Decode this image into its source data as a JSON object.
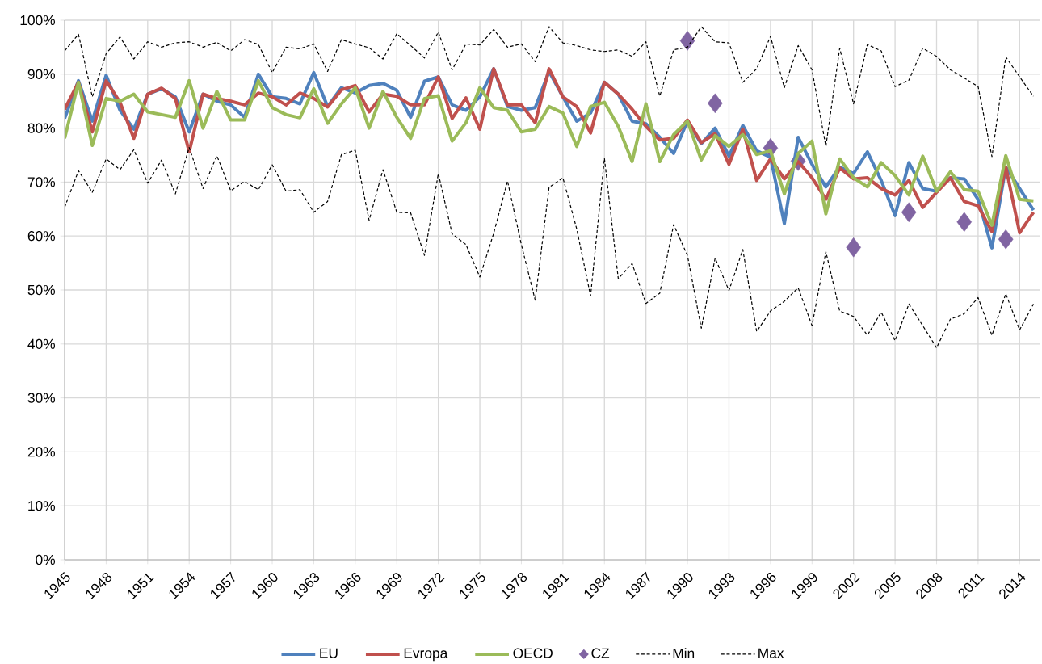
{
  "chart_data": {
    "type": "line",
    "x": [
      1945,
      1946,
      1947,
      1948,
      1949,
      1950,
      1951,
      1952,
      1953,
      1954,
      1955,
      1956,
      1957,
      1958,
      1959,
      1960,
      1961,
      1962,
      1963,
      1964,
      1965,
      1966,
      1967,
      1968,
      1969,
      1970,
      1971,
      1972,
      1973,
      1974,
      1975,
      1976,
      1977,
      1978,
      1979,
      1980,
      1981,
      1982,
      1983,
      1984,
      1985,
      1986,
      1987,
      1988,
      1989,
      1990,
      1991,
      1992,
      1993,
      1994,
      1995,
      1996,
      1997,
      1998,
      1999,
      2000,
      2001,
      2002,
      2003,
      2004,
      2005,
      2006,
      2007,
      2008,
      2009,
      2010,
      2011,
      2012,
      2013,
      2014,
      2015
    ],
    "series": [
      {
        "name": "EU",
        "color": "#4f81bd",
        "line_style": "solid",
        "values": [
          81.8,
          88.8,
          81.3,
          89.8,
          83.3,
          79.8,
          86.3,
          87.3,
          85.8,
          79.3,
          86.3,
          85.0,
          84.3,
          82.0,
          90.0,
          85.8,
          85.5,
          84.5,
          90.3,
          84.0,
          87.5,
          86.5,
          87.9,
          88.3,
          87.0,
          82.0,
          88.7,
          89.5,
          84.3,
          83.3,
          85.8,
          91.0,
          84.0,
          83.3,
          83.8,
          90.5,
          85.8,
          81.3,
          82.8,
          88.5,
          86.3,
          81.3,
          80.8,
          78.3,
          75.3,
          81.3,
          77.1,
          80.0,
          74.8,
          80.5,
          75.8,
          74.6,
          62.3,
          78.3,
          73.3,
          69.1,
          72.8,
          71.6,
          75.6,
          70.3,
          63.8,
          73.6,
          68.8,
          68.3,
          70.8,
          70.6,
          66.8,
          57.8,
          72.8,
          68.8,
          64.8
        ]
      },
      {
        "name": "Evropa",
        "color": "#c0504d",
        "line_style": "solid",
        "values": [
          83.5,
          88.5,
          79.3,
          88.8,
          84.8,
          78.1,
          86.3,
          87.4,
          85.5,
          75.6,
          86.3,
          85.5,
          85.0,
          84.3,
          86.5,
          85.8,
          84.3,
          86.5,
          85.5,
          83.9,
          87.1,
          87.9,
          83.0,
          86.3,
          85.9,
          84.3,
          84.3,
          89.5,
          81.8,
          85.6,
          79.8,
          91.0,
          84.3,
          84.3,
          81.0,
          91.0,
          85.8,
          84.0,
          79.1,
          88.5,
          86.3,
          83.5,
          80.3,
          77.8,
          78.1,
          81.5,
          77.3,
          79.0,
          73.3,
          79.8,
          70.3,
          74.3,
          70.6,
          73.8,
          70.8,
          66.8,
          72.6,
          70.6,
          70.8,
          68.8,
          67.6,
          70.3,
          65.3,
          68.1,
          70.8,
          66.4,
          65.6,
          60.8,
          72.8,
          60.6,
          64.4
        ]
      },
      {
        "name": "OECD",
        "color": "#9bbb59",
        "line_style": "solid",
        "values": [
          78.1,
          88.5,
          76.8,
          85.5,
          85.0,
          86.3,
          83.0,
          82.5,
          82.0,
          88.8,
          80.0,
          86.8,
          81.5,
          81.5,
          88.8,
          83.8,
          82.5,
          81.9,
          87.3,
          80.9,
          84.5,
          87.5,
          80.0,
          86.8,
          82.0,
          78.1,
          85.5,
          86.0,
          77.6,
          81.0,
          87.5,
          83.8,
          83.3,
          79.3,
          79.8,
          84.0,
          82.8,
          76.6,
          84.0,
          84.8,
          80.3,
          73.8,
          84.5,
          73.8,
          78.8,
          81.3,
          74.1,
          78.6,
          76.6,
          78.8,
          75.1,
          75.8,
          67.8,
          75.3,
          77.6,
          64.1,
          74.3,
          70.8,
          69.1,
          73.6,
          71.2,
          67.6,
          74.8,
          68.3,
          71.9,
          68.6,
          68.3,
          62.0,
          74.9,
          66.8,
          66.5
        ]
      },
      {
        "name": "CZ",
        "color": "#8064a2",
        "type": "scatter",
        "marker": "diamond",
        "x": [
          1990,
          1992,
          1996,
          1998,
          2002,
          2006,
          2010,
          2013
        ],
        "values": [
          96.2,
          84.6,
          76.3,
          73.9,
          57.9,
          64.4,
          62.6,
          59.4
        ]
      },
      {
        "name": "Min",
        "color": "#000000",
        "line_style": "dashed",
        "values": [
          65.3,
          72.1,
          68.1,
          74.3,
          72.3,
          76.0,
          69.8,
          74.1,
          67.8,
          76.4,
          68.8,
          74.9,
          68.4,
          70.1,
          68.6,
          73.2,
          68.3,
          68.6,
          64.4,
          66.4,
          75.1,
          75.9,
          62.9,
          72.3,
          64.4,
          64.3,
          56.4,
          71.6,
          60.4,
          58.4,
          52.4,
          60.5,
          70.2,
          58.4,
          48.1,
          69.0,
          70.8,
          61.3,
          48.9,
          74.4,
          52.1,
          54.9,
          47.5,
          49.4,
          62.1,
          56.4,
          42.9,
          55.9,
          49.9,
          57.5,
          42.3,
          46.1,
          47.9,
          50.4,
          43.4,
          57.1,
          46.1,
          45.1,
          41.6,
          45.9,
          40.6,
          47.4,
          43.4,
          39.3,
          44.6,
          45.6,
          48.6,
          41.6,
          49.3,
          42.6,
          47.4
        ]
      },
      {
        "name": "Max",
        "color": "#000000",
        "line_style": "dashed",
        "values": [
          94.3,
          97.4,
          85.8,
          93.8,
          96.9,
          92.8,
          96.0,
          95.0,
          95.8,
          96.0,
          95.0,
          95.9,
          94.3,
          96.4,
          95.5,
          90.3,
          95.0,
          94.7,
          95.6,
          90.5,
          96.4,
          95.6,
          94.9,
          92.8,
          97.5,
          95.3,
          93.0,
          97.8,
          90.8,
          95.6,
          95.4,
          98.3,
          95.0,
          95.6,
          92.3,
          98.8,
          95.8,
          95.3,
          94.5,
          94.2,
          94.5,
          93.3,
          96.0,
          85.9,
          94.5,
          95.0,
          98.8,
          96.0,
          95.8,
          88.5,
          91.0,
          97.0,
          87.5,
          95.3,
          90.8,
          76.6,
          94.8,
          84.5,
          95.5,
          94.3,
          87.7,
          88.9,
          94.8,
          93.3,
          90.8,
          89.3,
          87.7,
          74.7,
          93.2,
          89.5,
          85.9
        ]
      }
    ],
    "xlim": [
      1945,
      2015.5
    ],
    "xticks": [
      1945,
      1948,
      1951,
      1954,
      1957,
      1960,
      1963,
      1966,
      1969,
      1972,
      1975,
      1978,
      1981,
      1984,
      1987,
      1990,
      1993,
      1996,
      1999,
      2002,
      2005,
      2008,
      2011,
      2014
    ],
    "ylim": [
      0,
      100
    ],
    "yticks": [
      {
        "value": 0,
        "label": "0%"
      },
      {
        "value": 10,
        "label": "10%"
      },
      {
        "value": 20,
        "label": "20%"
      },
      {
        "value": 30,
        "label": "30%"
      },
      {
        "value": 40,
        "label": "40%"
      },
      {
        "value": 50,
        "label": "50%"
      },
      {
        "value": 60,
        "label": "60%"
      },
      {
        "value": 70,
        "label": "70%"
      },
      {
        "value": 80,
        "label": "80%"
      },
      {
        "value": 90,
        "label": "90%"
      },
      {
        "value": 100,
        "label": "100%"
      }
    ],
    "grid": true,
    "legend": "bottom",
    "marker": "none"
  }
}
